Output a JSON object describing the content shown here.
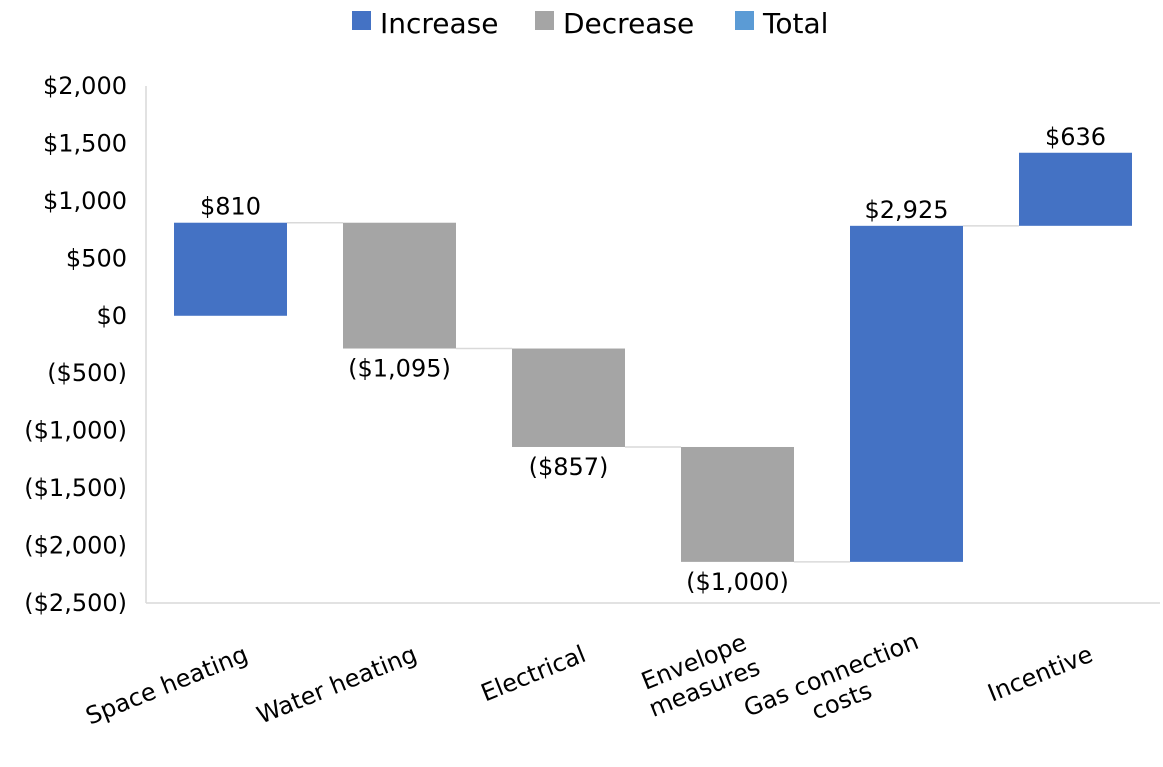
{
  "chart_data": {
    "type": "waterfall",
    "legend": {
      "position": "top",
      "entries": [
        {
          "name": "Increase",
          "color": "#4472C4"
        },
        {
          "name": "Decrease",
          "color": "#A5A5A5"
        },
        {
          "name": "Total",
          "color": "#5B9BD5"
        }
      ]
    },
    "categories": [
      {
        "lines": [
          "Space heating"
        ]
      },
      {
        "lines": [
          "Water heating"
        ]
      },
      {
        "lines": [
          "Electrical"
        ]
      },
      {
        "lines": [
          "Envelope",
          "measures"
        ]
      },
      {
        "lines": [
          "Gas connection",
          "costs"
        ]
      },
      {
        "lines": [
          "Incentive"
        ]
      }
    ],
    "values": [
      810,
      -1095,
      -857,
      -1000,
      2925,
      636
    ],
    "data_labels": [
      "$810",
      "($1,095)",
      "($857)",
      "($1,000)",
      "$2,925",
      "$636"
    ],
    "y_axis": {
      "min": -2500,
      "max": 2000,
      "step": 500,
      "tick_labels": [
        "($2,500)",
        "($2,000)",
        "($1,500)",
        "($1,000)",
        "($500)",
        "$0",
        "$500",
        "$1,000",
        "$1,500",
        "$2,000"
      ]
    },
    "gridlines": false,
    "connectors": true,
    "colors": {
      "increase": "#4472C4",
      "decrease": "#A5A5A5",
      "total": "#5B9BD5",
      "axis": "#D9D9D9",
      "connector": "#D9D9D9"
    }
  }
}
